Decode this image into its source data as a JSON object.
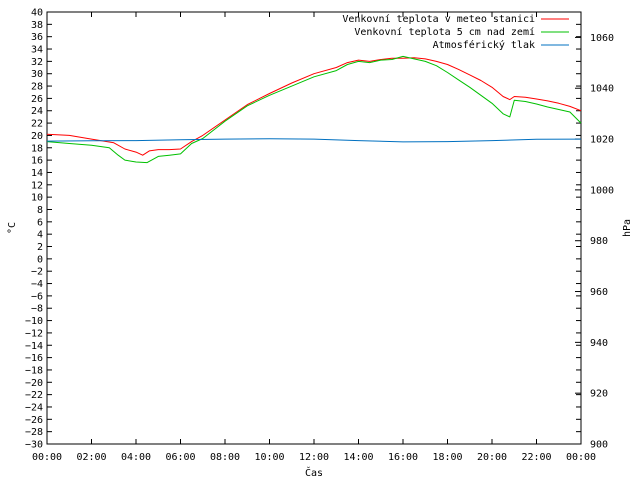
{
  "chart_data": {
    "type": "line",
    "xlabel": "Čas",
    "ylabel": "°C",
    "y2label": "hPa",
    "x_ticks": [
      "00:00",
      "02:00",
      "04:00",
      "06:00",
      "08:00",
      "10:00",
      "12:00",
      "14:00",
      "16:00",
      "18:00",
      "20:00",
      "22:00",
      "00:00"
    ],
    "xlim_hours": [
      0,
      24
    ],
    "ylim": [
      -30,
      40
    ],
    "y_tick_step": 2,
    "y2lim": [
      900,
      1070
    ],
    "y2_ticks": [
      900,
      920,
      940,
      960,
      980,
      1000,
      1020,
      1040,
      1060
    ],
    "grid": false,
    "legend_position": "top-right",
    "series": [
      {
        "name": "Venkovní teplota v meteo stanici",
        "axis": "y",
        "color": "#ff0000",
        "x": [
          0,
          1,
          2,
          3,
          3.5,
          4,
          4.3,
          4.6,
          5,
          5.5,
          6,
          6.5,
          7,
          8,
          9,
          10,
          11,
          12,
          13,
          13.5,
          14,
          14.5,
          15,
          15.5,
          16,
          16.5,
          17,
          17.5,
          18,
          18.5,
          19,
          19.5,
          20,
          20.5,
          20.8,
          21,
          21.5,
          22,
          22.5,
          23,
          23.5,
          24
        ],
        "y": [
          20.2,
          20.0,
          19.4,
          18.8,
          17.8,
          17.3,
          16.8,
          17.5,
          17.7,
          17.7,
          17.8,
          19.0,
          20.0,
          22.5,
          25.0,
          26.8,
          28.5,
          30.0,
          31.0,
          31.8,
          32.2,
          32.0,
          32.3,
          32.5,
          32.5,
          32.6,
          32.4,
          32.0,
          31.5,
          30.7,
          29.8,
          28.9,
          27.8,
          26.3,
          25.8,
          26.3,
          26.2,
          25.9,
          25.6,
          25.2,
          24.7,
          24.0
        ]
      },
      {
        "name": "Venkovní teplota 5 cm nad zemí",
        "axis": "y",
        "color": "#00c000",
        "x": [
          0,
          1,
          2,
          2.8,
          3.2,
          3.5,
          4,
          4.5,
          5,
          5.5,
          6,
          6.5,
          7,
          8,
          9,
          10,
          11,
          12,
          13,
          13.5,
          14,
          14.5,
          15,
          15.5,
          16,
          16.5,
          17,
          17.5,
          18,
          18.5,
          19,
          19.5,
          20,
          20.5,
          20.8,
          21,
          21.5,
          22,
          22.5,
          23,
          23.5,
          24
        ],
        "y": [
          19.0,
          18.7,
          18.4,
          18.0,
          16.8,
          16.0,
          15.7,
          15.6,
          16.6,
          16.8,
          17.0,
          18.7,
          19.5,
          22.3,
          24.8,
          26.5,
          28.0,
          29.5,
          30.5,
          31.5,
          32.0,
          31.8,
          32.2,
          32.3,
          32.8,
          32.4,
          32.0,
          31.3,
          30.2,
          29.0,
          27.8,
          26.5,
          25.2,
          23.5,
          23.0,
          25.7,
          25.5,
          25.1,
          24.6,
          24.2,
          23.8,
          22.0
        ]
      },
      {
        "name": "Atmosférický tlak",
        "axis": "y2",
        "color": "#0070c0",
        "x": [
          0,
          2,
          4,
          6,
          8,
          10,
          12,
          14,
          16,
          18,
          20,
          22,
          24
        ],
        "y": [
          1019.2,
          1019.3,
          1019.4,
          1019.7,
          1020.0,
          1020.1,
          1020.0,
          1019.4,
          1018.9,
          1019.0,
          1019.4,
          1019.9,
          1020.0
        ]
      }
    ]
  }
}
